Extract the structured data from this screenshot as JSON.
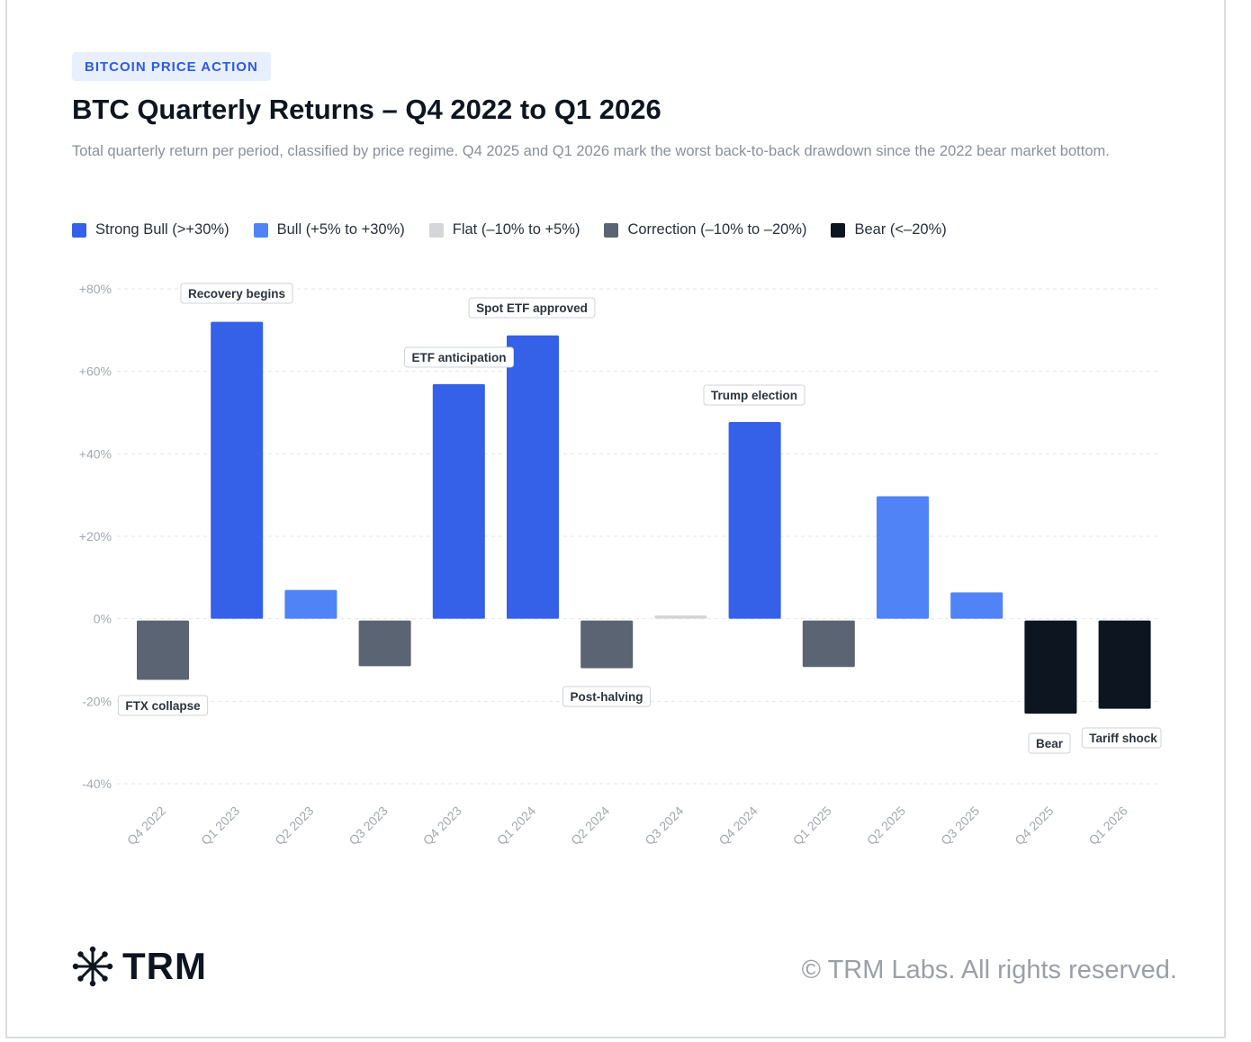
{
  "header": {
    "eyebrow": "BITCOIN PRICE ACTION",
    "title": "BTC Quarterly Returns – Q4 2022 to Q1 2026",
    "subtitle": "Total quarterly return per period, classified by price regime. Q4 2025 and Q1 2026 mark the worst back-to-back drawdown since the 2022 bear market bottom."
  },
  "legend": [
    {
      "label": "Strong Bull (>+30%)",
      "color": "#3461e8"
    },
    {
      "label": "Bull (+5% to +30%)",
      "color": "#5083f5"
    },
    {
      "label": "Flat (–10% to +5%)",
      "color": "#d4d6d9"
    },
    {
      "label": "Correction (–10% to –20%)",
      "color": "#5a6472"
    },
    {
      "label": "Bear (<–20%)",
      "color": "#0d1520"
    }
  ],
  "chart_data": {
    "type": "bar",
    "categories": [
      "Q4 2022",
      "Q1 2023",
      "Q2 2023",
      "Q3 2023",
      "Q4 2023",
      "Q1 2024",
      "Q2 2024",
      "Q3 2024",
      "Q4 2024",
      "Q1 2025",
      "Q2 2025",
      "Q3 2025",
      "Q4 2025",
      "Q1 2026"
    ],
    "values": [
      -14.8,
      72,
      7,
      -11.5,
      56.9,
      68.7,
      -12,
      0.8,
      47.7,
      -11.7,
      29.7,
      6.4,
      -23,
      -21.8
    ],
    "regimes": [
      "correction",
      "strong_bull",
      "bull",
      "correction",
      "strong_bull",
      "strong_bull",
      "correction",
      "flat",
      "strong_bull",
      "correction",
      "bull",
      "bull",
      "bear",
      "bear"
    ],
    "regime_colors": {
      "strong_bull": "#3461e8",
      "bull": "#5083f5",
      "flat": "#d4d6d9",
      "correction": "#5a6472",
      "bear": "#0d1520"
    },
    "annotations": [
      {
        "category": "Q4 2022",
        "text": "FTX collapse"
      },
      {
        "category": "Q1 2023",
        "text": "Recovery begins"
      },
      {
        "category": "Q4 2023",
        "text": "ETF anticipation"
      },
      {
        "category": "Q1 2024",
        "text": "Spot ETF approved"
      },
      {
        "category": "Q2 2024",
        "text": "Post-halving"
      },
      {
        "category": "Q4 2024",
        "text": "Trump election"
      },
      {
        "category": "Q4 2025",
        "text": "Bear"
      },
      {
        "category": "Q1 2026",
        "text": "Tariff shock"
      }
    ],
    "yticks": [
      80,
      60,
      40,
      20,
      0,
      -20,
      -40
    ],
    "ytick_labels": [
      "+80%",
      "+60%",
      "+40%",
      "+20%",
      "0%",
      "-20%",
      "-40%"
    ],
    "ylim": [
      -40,
      80
    ],
    "grid": true,
    "legend_position": "top-left"
  },
  "footer": {
    "brand": "TRM",
    "copyright": "© TRM Labs. All rights reserved."
  }
}
